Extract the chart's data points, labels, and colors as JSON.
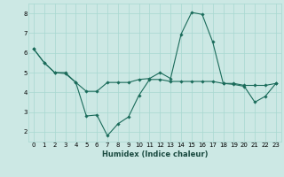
{
  "xlabel": "Humidex (Indice chaleur)",
  "bg_color": "#cce8e4",
  "grid_color": "#a8d8d0",
  "line_color": "#1a6b5a",
  "line1_x": [
    0,
    1,
    2,
    3,
    4,
    5,
    6,
    7,
    8,
    9,
    10,
    11,
    12,
    13,
    14,
    15,
    16,
    17,
    18,
    19,
    20,
    21,
    22,
    23
  ],
  "line1_y": [
    6.2,
    5.5,
    5.0,
    5.0,
    4.5,
    4.05,
    4.05,
    4.5,
    4.5,
    4.5,
    4.65,
    4.7,
    5.0,
    4.7,
    6.95,
    8.05,
    7.95,
    6.55,
    4.45,
    4.45,
    4.35,
    4.35,
    4.35,
    4.45
  ],
  "line2_x": [
    0,
    1,
    2,
    3,
    4,
    5,
    6,
    7,
    8,
    9,
    10,
    11,
    12,
    13,
    14,
    15,
    16,
    17,
    18,
    19,
    20,
    21,
    22,
    23
  ],
  "line2_y": [
    6.2,
    5.5,
    5.0,
    4.95,
    4.5,
    2.8,
    2.85,
    1.8,
    2.4,
    2.75,
    3.85,
    4.65,
    4.65,
    4.55,
    4.55,
    4.55,
    4.55,
    4.55,
    4.45,
    4.4,
    4.3,
    3.5,
    3.8,
    4.45
  ],
  "ylim": [
    1.5,
    8.5
  ],
  "xlim": [
    -0.5,
    23.5
  ],
  "yticks": [
    2,
    3,
    4,
    5,
    6,
    7,
    8
  ],
  "xticks": [
    0,
    1,
    2,
    3,
    4,
    5,
    6,
    7,
    8,
    9,
    10,
    11,
    12,
    13,
    14,
    15,
    16,
    17,
    18,
    19,
    20,
    21,
    22,
    23
  ],
  "tick_fontsize": 5.0,
  "xlabel_fontsize": 6.0,
  "marker_size": 1.8,
  "line_width": 0.8
}
